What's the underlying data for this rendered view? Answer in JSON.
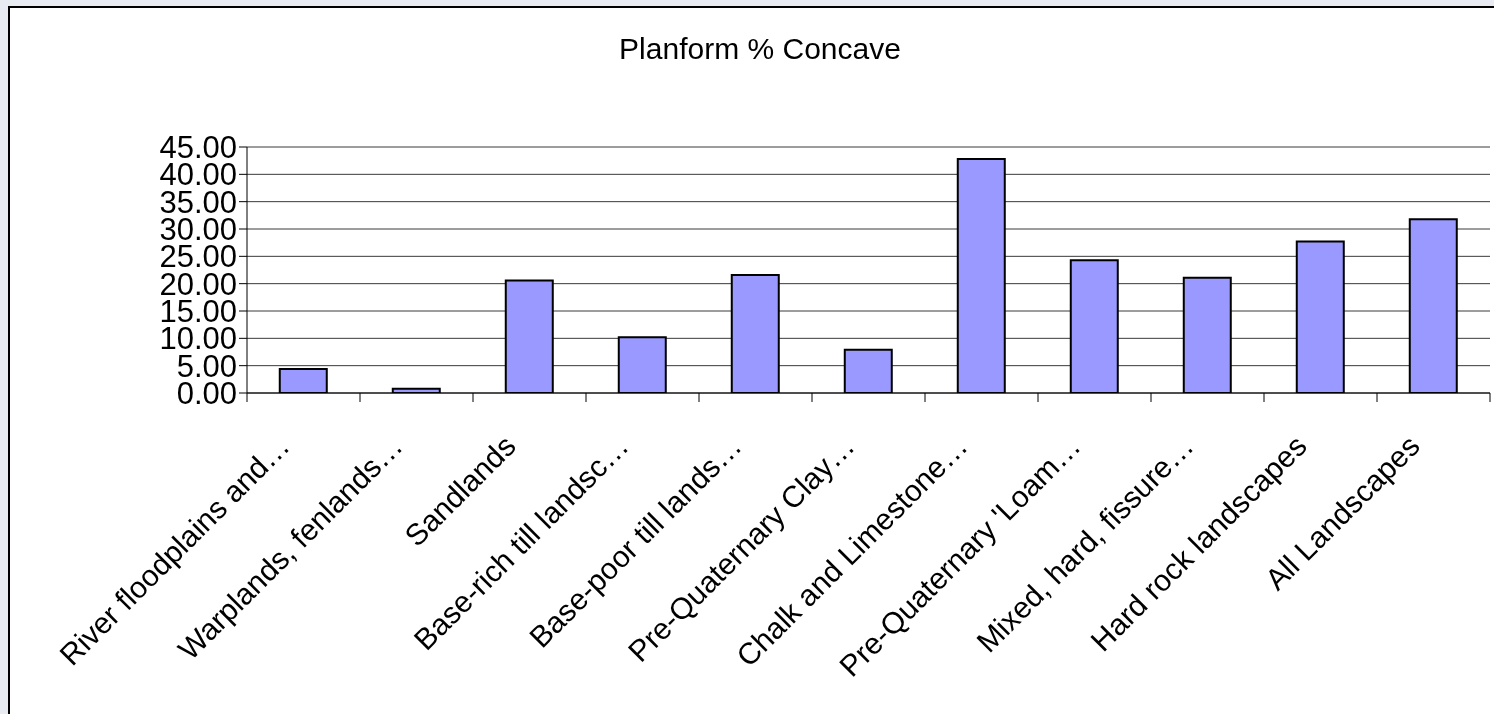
{
  "chart_data": {
    "type": "bar",
    "title": "Planform % Concave",
    "categories": [
      "River floodplains and…",
      "Warplands, fenlands…",
      "Sandlands",
      "Base-rich till landsc…",
      "Base-poor till lands…",
      "Pre-Quaternary Clay…",
      "Chalk and Limestone…",
      "Pre-Quaternary 'Loam…",
      "Mixed, hard, fissure…",
      "Hard rock landscapes",
      "All Landscapes"
    ],
    "values": [
      4.4,
      0.8,
      20.6,
      10.2,
      21.6,
      7.9,
      42.8,
      24.3,
      21.1,
      27.7,
      31.8
    ],
    "color": "#9999ff",
    "ylim": [
      0,
      45
    ],
    "yticks": [
      {
        "value": 0,
        "label": "0.00"
      },
      {
        "value": 5,
        "label": "5.00"
      },
      {
        "value": 10,
        "label": "10.00"
      },
      {
        "value": 15,
        "label": "15.00"
      },
      {
        "value": 20,
        "label": "20.00"
      },
      {
        "value": 25,
        "label": "25.00"
      },
      {
        "value": 30,
        "label": "30.00"
      },
      {
        "value": 35,
        "label": "35.00"
      },
      {
        "value": 40,
        "label": "40.00"
      },
      {
        "value": 45,
        "label": "45.00"
      }
    ],
    "grid": "y"
  }
}
